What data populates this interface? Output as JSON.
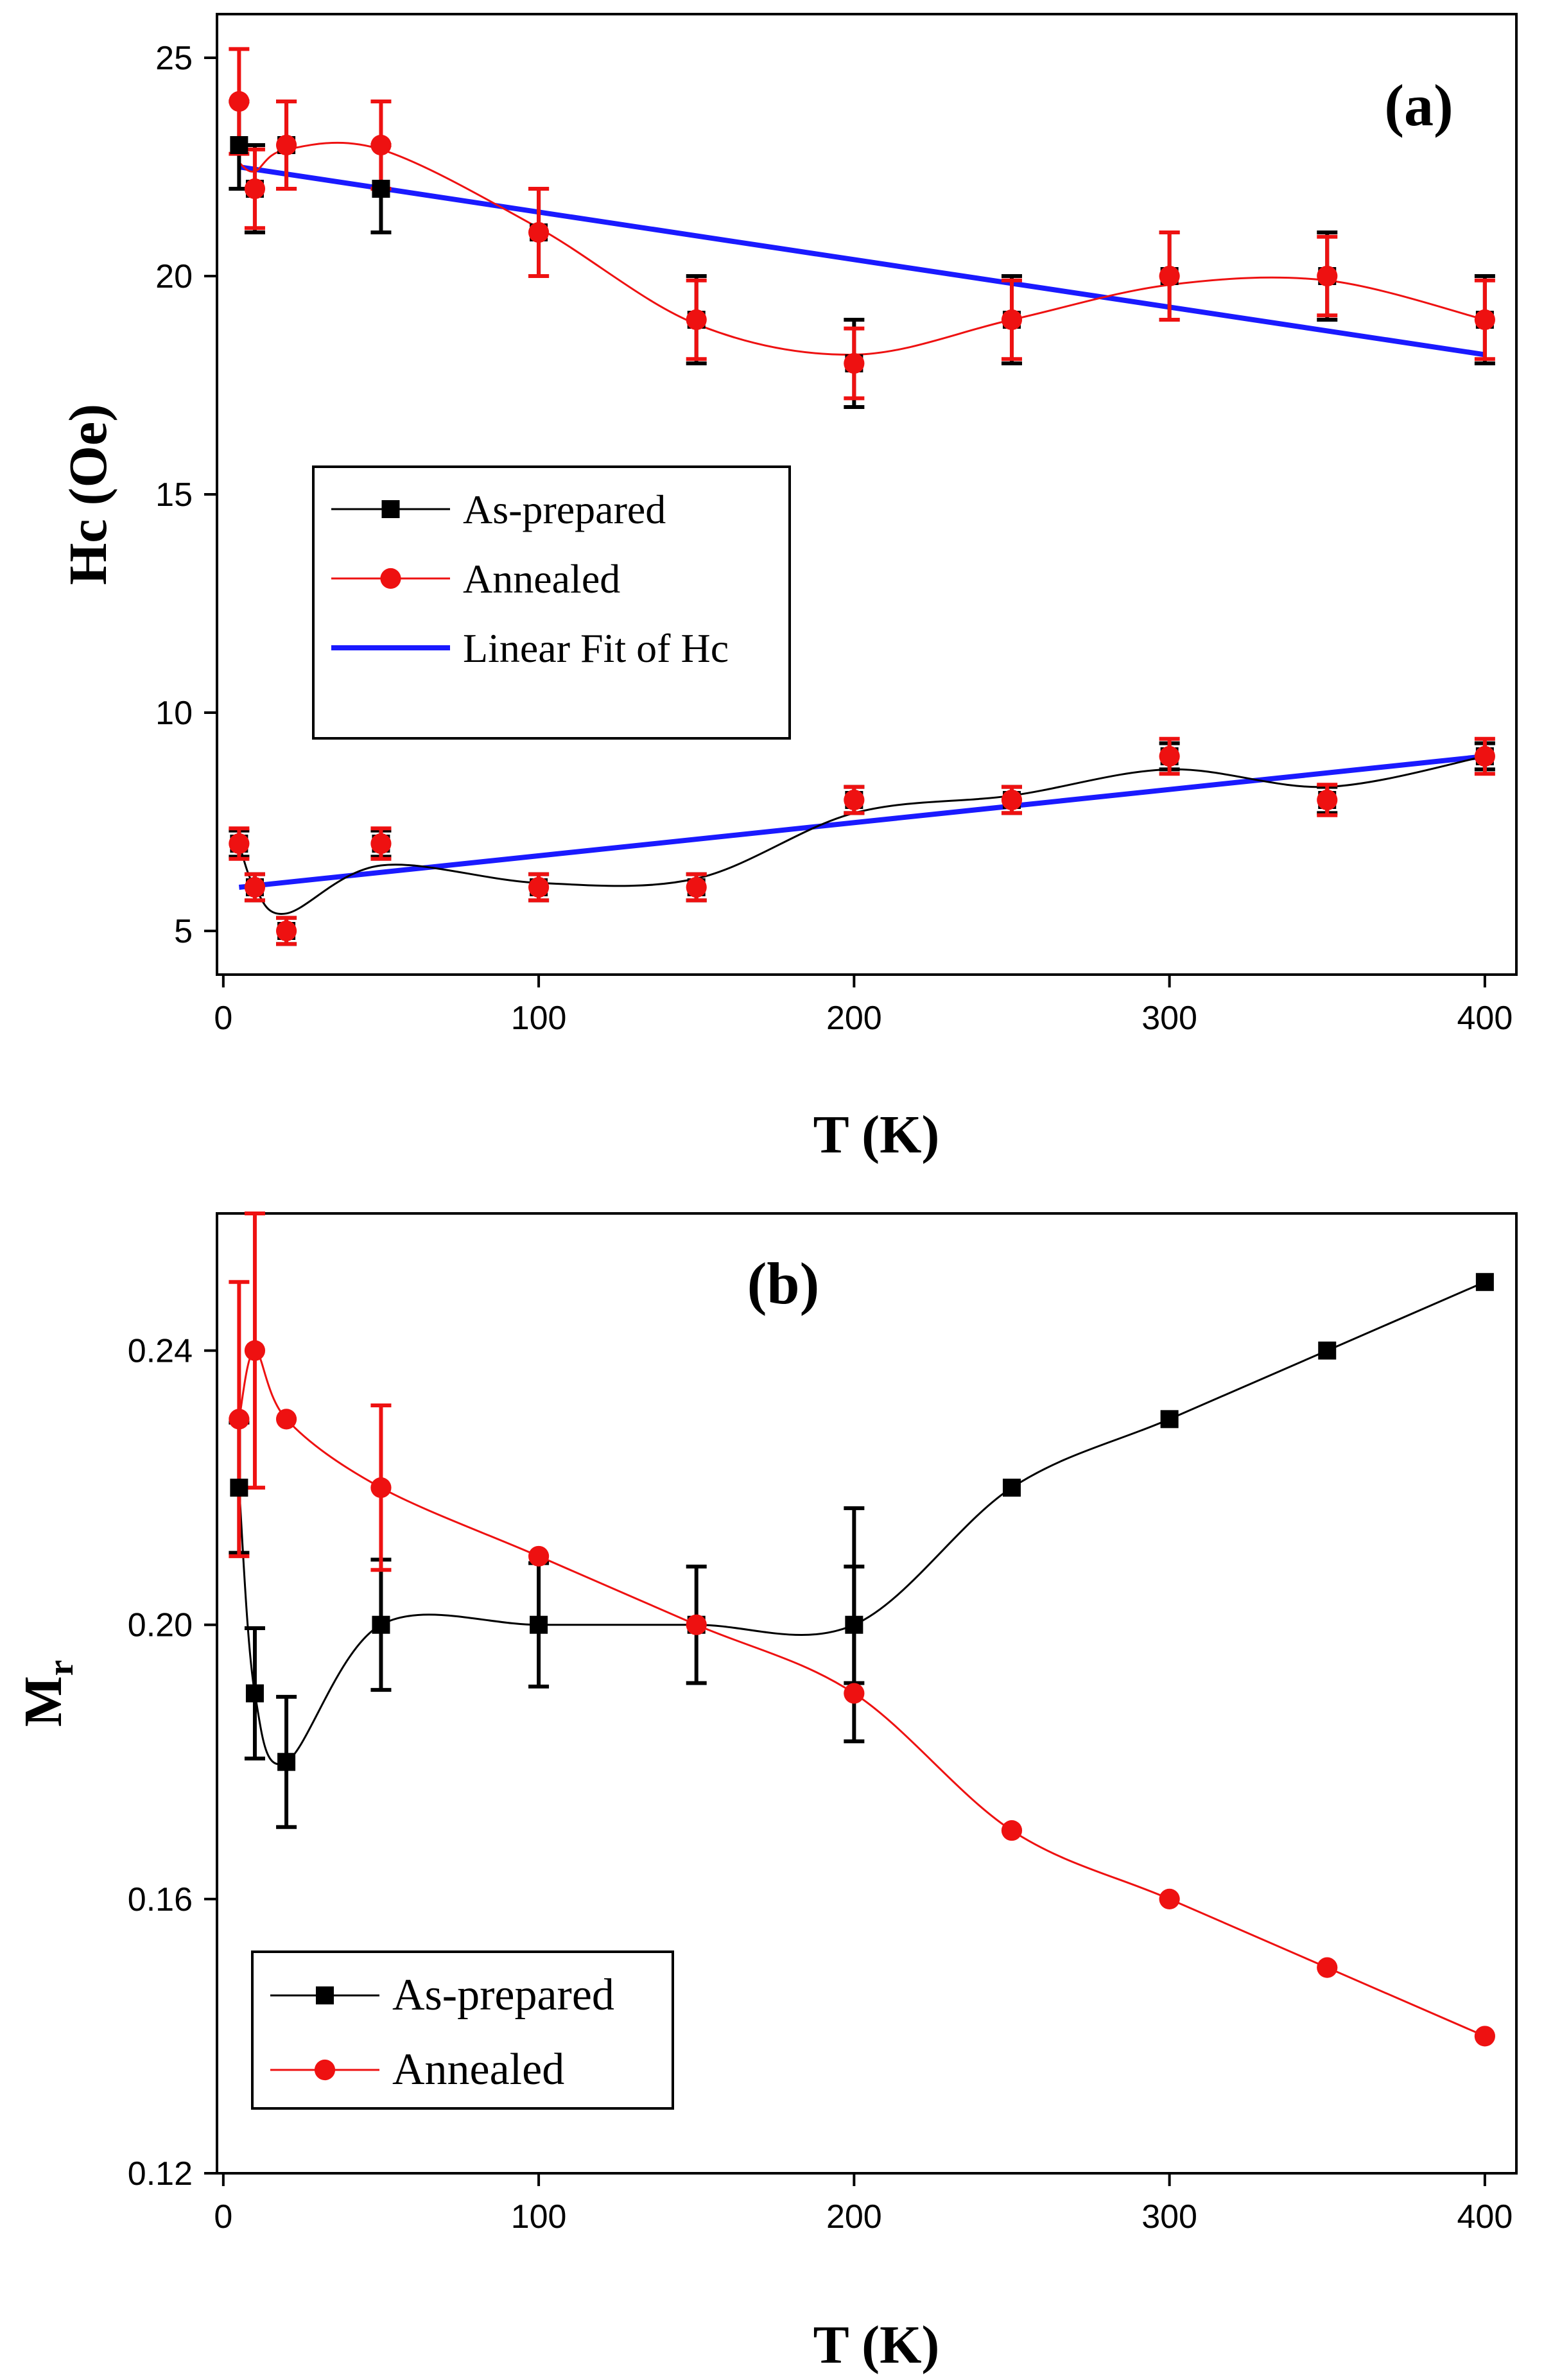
{
  "chart_data": [
    {
      "type": "scatter",
      "panel_label": "(a)",
      "xlabel": "T (K)",
      "ylabel": "Hc (Oe)",
      "xlim": [
        -2,
        410
      ],
      "ylim": [
        4,
        26
      ],
      "xticks": [
        0,
        100,
        200,
        300,
        400
      ],
      "yticks": [
        5,
        10,
        15,
        20,
        25
      ],
      "x": [
        5,
        10,
        20,
        50,
        100,
        150,
        200,
        250,
        300,
        350,
        400
      ],
      "series": [
        {
          "name": "As-prepared",
          "color": "#000000",
          "marker": "square",
          "values": [
            23,
            22,
            23,
            22,
            21,
            19,
            18,
            19,
            20,
            20,
            19
          ],
          "errors": [
            1,
            1,
            1,
            1,
            1,
            1,
            1,
            1,
            1,
            1,
            1
          ]
        },
        {
          "name": "Annealed",
          "color": "#ee1111",
          "marker": "circle",
          "values": [
            24,
            22,
            23,
            23,
            21,
            19,
            18,
            19,
            20,
            20,
            19
          ],
          "errors": [
            1.2,
            0.9,
            1.0,
            1.0,
            1.0,
            0.9,
            0.8,
            0.9,
            1.0,
            0.9,
            0.9
          ]
        },
        {
          "name": "As-prepared",
          "color": "#000000",
          "marker": "square",
          "values": [
            7,
            6,
            5,
            7,
            6,
            6,
            8,
            8,
            9,
            8,
            9
          ],
          "errors": [
            0.3,
            0.3,
            0.3,
            0.3,
            0.3,
            0.3,
            0.3,
            0.3,
            0.3,
            0.3,
            0.3
          ]
        },
        {
          "name": "Annealed",
          "color": "#ee1111",
          "marker": "circle",
          "values": [
            7,
            6,
            5,
            7,
            6,
            6,
            8,
            8,
            9,
            8,
            9
          ],
          "errors": [
            0.35,
            0.3,
            0.3,
            0.35,
            0.3,
            0.3,
            0.3,
            0.3,
            0.4,
            0.35,
            0.4
          ]
        }
      ],
      "smooth_curves": [
        {
          "series": "As-prepared",
          "color": "#000000",
          "x": [
            5,
            10,
            20,
            50,
            100,
            150,
            200,
            250,
            300,
            350,
            400
          ],
          "y": [
            7,
            6,
            5.4,
            6.5,
            6.1,
            6.2,
            7.7,
            8.1,
            8.7,
            8.3,
            9
          ]
        },
        {
          "series": "Annealed",
          "color": "#ee1111",
          "x": [
            5,
            10,
            20,
            50,
            100,
            150,
            200,
            250,
            300,
            350,
            400
          ],
          "y": [
            22.6,
            22.4,
            22.9,
            22.9,
            21.1,
            18.9,
            18.2,
            19.0,
            19.8,
            19.9,
            19.0
          ]
        }
      ],
      "fits": [
        {
          "name": "Linear Fit of Hc",
          "color": "#1a1aff",
          "x": [
            5,
            400
          ],
          "y": [
            22.5,
            18.2
          ]
        },
        {
          "name": "Linear Fit of Hc",
          "color": "#1a1aff",
          "x": [
            5,
            400
          ],
          "y": [
            6.0,
            9.0
          ]
        }
      ],
      "legend": {
        "position": "middle-left",
        "entries": [
          {
            "label": "As-prepared",
            "color": "#000000",
            "marker": "square"
          },
          {
            "label": "Annealed",
            "color": "#ee1111",
            "marker": "circle"
          },
          {
            "label": "Linear Fit of Hc",
            "color": "#1a1aff",
            "marker": "line"
          }
        ]
      }
    },
    {
      "type": "line",
      "panel_label": "(b)",
      "xlabel": "T (K)",
      "ylabel": "Mr",
      "ylabel_main": "M",
      "ylabel_sub": "r",
      "xlim": [
        -2,
        410
      ],
      "ylim": [
        0.12,
        0.26
      ],
      "xticks": [
        0,
        100,
        200,
        300,
        400
      ],
      "yticks": [
        0.12,
        0.16,
        0.2,
        0.24
      ],
      "ytick_labels": [
        "0.12",
        "0.16",
        "0.20",
        "0.24"
      ],
      "x": [
        5,
        10,
        20,
        50,
        100,
        150,
        200,
        250,
        300,
        350,
        400
      ],
      "series": [
        {
          "name": "As-prepared",
          "color": "#000000",
          "marker": "square",
          "values": [
            0.22,
            0.19,
            0.18,
            0.2,
            0.2,
            0.2,
            0.2,
            0.22,
            0.23,
            0.24,
            0.25
          ],
          "errors": [
            0.0095,
            0.0095,
            0.0095,
            0.0095,
            0.009,
            0.0085,
            0.0085,
            0.0,
            0.0,
            0.0,
            0.0
          ]
        },
        {
          "name": "Annealed",
          "color": "#ee1111",
          "marker": "circle",
          "values": [
            0.23,
            0.24,
            0.23,
            0.22,
            0.21,
            0.2,
            0.19,
            0.17,
            0.16,
            0.15,
            0.14
          ],
          "errors": [
            0.02,
            0.02,
            0.0,
            0.012,
            0.0,
            0.0,
            0.0,
            0.0,
            0.0,
            0.0,
            0.0
          ]
        },
        {
          "name": "As-prepared",
          "color": "#000000",
          "marker": "none",
          "values": [
            0.22,
            0.19,
            0.18,
            0.2,
            0.2,
            0.2,
            0.2,
            0.22,
            0.23,
            0.24,
            0.25
          ],
          "errors": [
            0,
            0,
            0,
            0,
            0,
            0,
            0.017,
            0,
            0,
            0,
            0
          ]
        }
      ],
      "legend": {
        "position": "bottom-left",
        "entries": [
          {
            "label": "As-prepared",
            "color": "#000000",
            "marker": "square"
          },
          {
            "label": "Annealed",
            "color": "#ee1111",
            "marker": "circle"
          }
        ]
      }
    }
  ]
}
